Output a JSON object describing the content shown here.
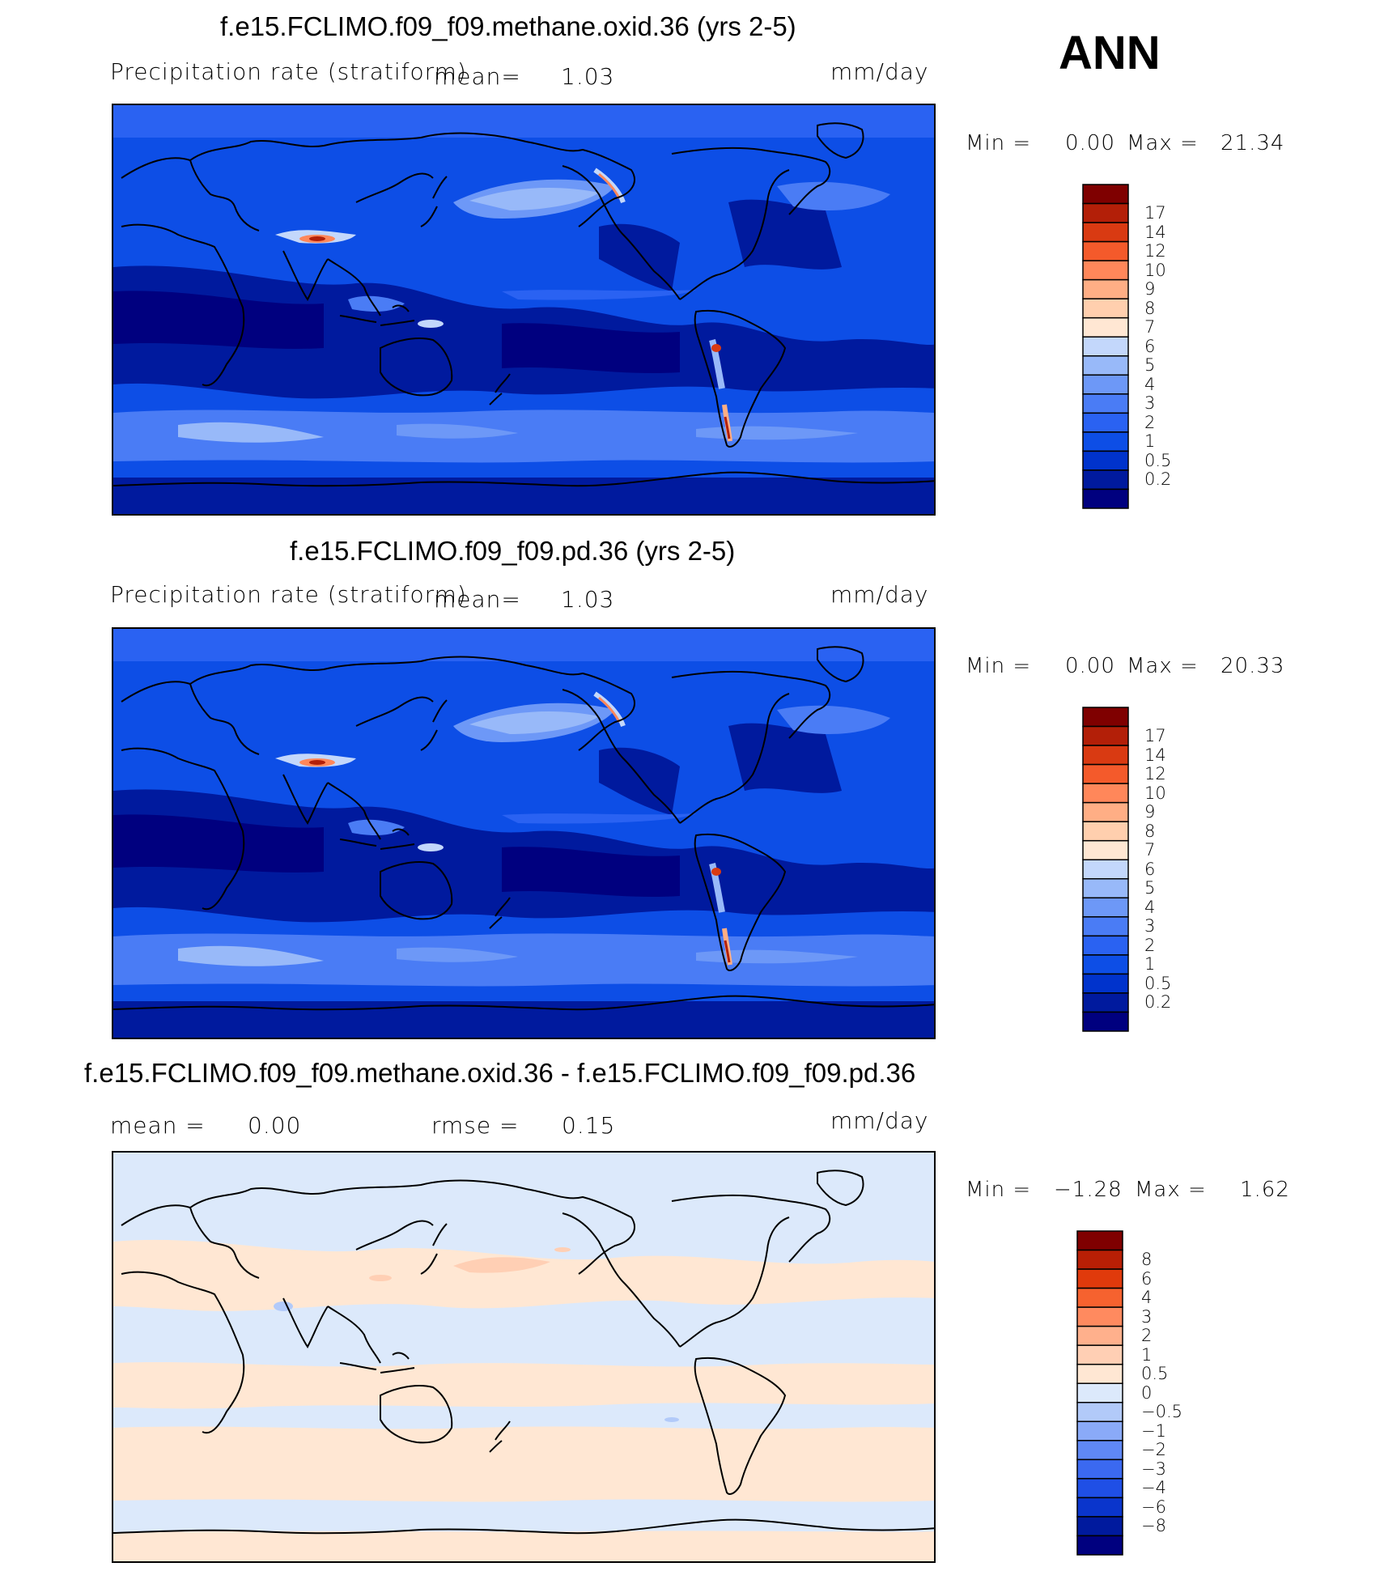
{
  "season": "ANN",
  "colors": {
    "precip_levels": [
      "#00007f",
      "#001a9e",
      "#0033cc",
      "#0d4ee6",
      "#2a62f2",
      "#4a7cf5",
      "#6d98f7",
      "#98b9f9",
      "#c3d7fb",
      "#ffe7d3",
      "#ffcfae",
      "#ffae85",
      "#ff875a",
      "#f45a2b",
      "#d93a12",
      "#b31f08",
      "#7f0000"
    ],
    "diff_levels": [
      "#00007f",
      "#001a9e",
      "#0a35cc",
      "#1f4fe6",
      "#3b69f0",
      "#5f88f5",
      "#8aaaf8",
      "#b2caf9",
      "#dce9fb",
      "#ffe7d3",
      "#ffcfb4",
      "#ffb08c",
      "#ff8a5f",
      "#f6622f",
      "#e03a0c",
      "#b81f05",
      "#7f0000"
    ],
    "coast": "#000000"
  },
  "panels": [
    {
      "title": "f.e15.FCLIMO.f09_f09.methane.oxid.36 (yrs 2-5)",
      "variable": "Precipitation rate (stratiform)",
      "mean_label": "mean=",
      "mean_value": "1.03",
      "units": "mm/day",
      "min_label": "Min =",
      "min_value": "0.00",
      "max_label": "Max =",
      "max_value": "21.34",
      "colorbar_labels": [
        "17",
        "14",
        "12",
        "10",
        "9",
        "8",
        "7",
        "6",
        "5",
        "4",
        "3",
        "2",
        "1",
        "0.5",
        "0.2"
      ]
    },
    {
      "title": "f.e15.FCLIMO.f09_f09.pd.36 (yrs 2-5)",
      "variable": "Precipitation rate (stratiform)",
      "mean_label": "mean=",
      "mean_value": "1.03",
      "units": "mm/day",
      "min_label": "Min =",
      "min_value": "0.00",
      "max_label": "Max =",
      "max_value": "20.33",
      "colorbar_labels": [
        "17",
        "14",
        "12",
        "10",
        "9",
        "8",
        "7",
        "6",
        "5",
        "4",
        "3",
        "2",
        "1",
        "0.5",
        "0.2"
      ]
    },
    {
      "title": "f.e15.FCLIMO.f09_f09.methane.oxid.36 - f.e15.FCLIMO.f09_f09.pd.36",
      "mean_label": "mean =",
      "mean_value": "0.00",
      "rmse_label": "rmse =",
      "rmse_value": "0.15",
      "units": "mm/day",
      "min_label": "Min =",
      "min_value": "−1.28",
      "max_label": "Max =",
      "max_value": "1.62",
      "colorbar_labels": [
        "8",
        "6",
        "4",
        "3",
        "2",
        "1",
        "0.5",
        "0",
        "−0.5",
        "−1",
        "−2",
        "−3",
        "−4",
        "−6",
        "−8"
      ]
    }
  ]
}
